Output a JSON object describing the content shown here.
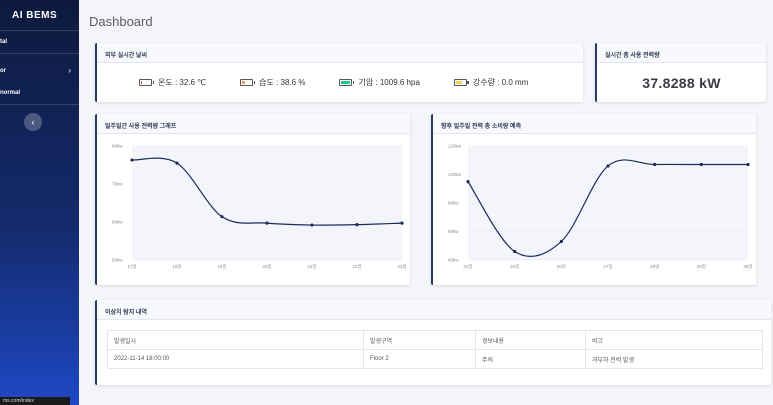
{
  "app": {
    "brand": "AI BEMS",
    "page_title": "Dashboard",
    "status_url": "ms.com/index"
  },
  "sidebar": {
    "items": [
      {
        "label": "tal"
      },
      {
        "label": "or"
      },
      {
        "label": "normal"
      }
    ],
    "toggle_icon": "chevron-left-icon"
  },
  "weather": {
    "title": "외부 실시간 날씨",
    "items": [
      {
        "label": "온도 : 32.6 ℃",
        "icon": "battery-low-icon",
        "color": "#e74a3b",
        "level": 0.15
      },
      {
        "label": "습도 : 38.6 %",
        "icon": "battery-low-icon",
        "color": "#f6a04d",
        "level": 0.3
      },
      {
        "label": "기압 : 1009.6 hpa",
        "icon": "battery-full-icon",
        "color": "#1cc88a",
        "level": 1.0
      },
      {
        "label": "강수량 : 0.0 mm",
        "icon": "battery-mid-icon",
        "color": "#f6d34d",
        "level": 0.7
      }
    ]
  },
  "power": {
    "title": "실시간 총 사용 전력량",
    "value": "37.8288 kW"
  },
  "charts": [
    {
      "title": "일주일간 사용 전력량 그래프",
      "chart_data": {
        "type": "line",
        "x": [
          "17일",
          "18일",
          "19일",
          "20일",
          "21일",
          "22일",
          "23일"
        ],
        "series": [
          {
            "values": [
              76.3,
              75.5,
              61.4,
              59.7,
              59.2,
              59.3,
              59.7
            ]
          }
        ],
        "yticks": [
          "80kw",
          "70kw",
          "60kw",
          "50kw"
        ],
        "ylim": [
          50,
          80
        ],
        "line_color": "#1f2a5a"
      }
    },
    {
      "title": "향후 일주일 전력 총 소비량 예측",
      "chart_data": {
        "type": "line",
        "x": [
          "24일",
          "25일",
          "26일",
          "27일",
          "28일",
          "29일",
          "30일"
        ],
        "series": [
          {
            "values": [
              95,
              46,
              53,
              106,
              107,
              107,
              107
            ]
          }
        ],
        "yticks": [
          "120kw",
          "100kw",
          "80kw",
          "60kw",
          "40kw"
        ],
        "ylim": [
          40,
          120
        ],
        "line_color": "#1f2a5a"
      }
    }
  ],
  "anomaly": {
    "title": "이상치 탐지 내역",
    "columns": [
      "발생일시",
      "발생구역",
      "경보내용",
      "비고"
    ],
    "rows": [
      [
        "2022-11-14 18:00:00",
        "Floor 2",
        "주의",
        "과부하 전력 발생"
      ]
    ]
  }
}
